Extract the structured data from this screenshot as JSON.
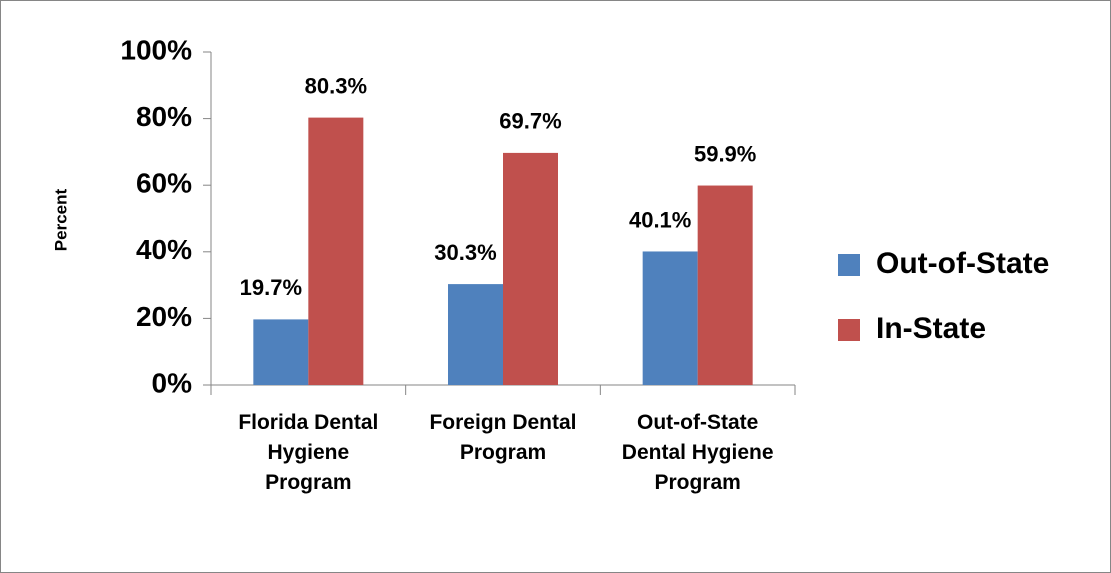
{
  "chart_data": {
    "type": "bar",
    "y_axis_label": "Percent",
    "categories": [
      "Florida Dental Hygiene Program",
      "Foreign Dental Program",
      "Out-of-State Dental Hygiene Program"
    ],
    "series": [
      {
        "name": "Out-of-State",
        "color": "#4f81bd",
        "values": [
          19.7,
          30.3,
          40.1
        ],
        "value_labels": [
          "19.7%",
          "30.3%",
          "40.1%"
        ]
      },
      {
        "name": "In-State",
        "color": "#c0504d",
        "values": [
          80.3,
          69.7,
          59.9
        ],
        "value_labels": [
          "80.3%",
          "69.7%",
          "59.9%"
        ]
      }
    ],
    "ylim": [
      0,
      100
    ],
    "yticks": [
      {
        "value": 0,
        "label": "0%"
      },
      {
        "value": 20,
        "label": "20%"
      },
      {
        "value": 40,
        "label": "40%"
      },
      {
        "value": 60,
        "label": "60%"
      },
      {
        "value": 80,
        "label": "80%"
      },
      {
        "value": 100,
        "label": "100%"
      }
    ],
    "grid": false,
    "legend": "right"
  }
}
